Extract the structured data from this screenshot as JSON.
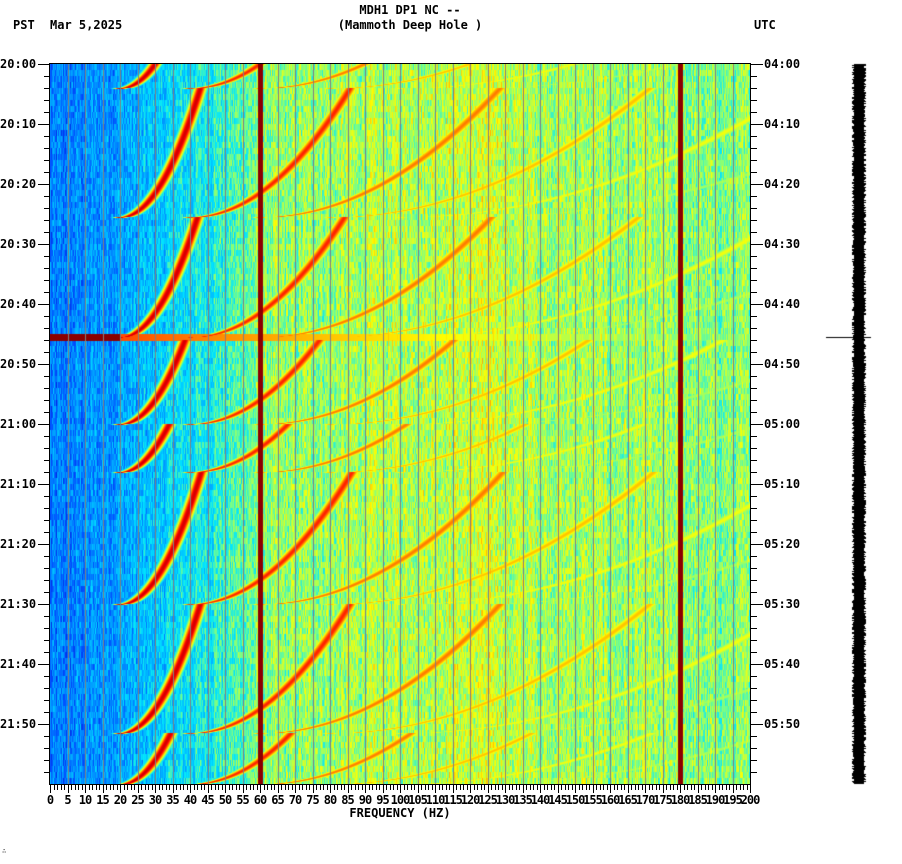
{
  "header": {
    "station_line": "MDH1 DP1 NC --",
    "site_line": "(Mammoth Deep Hole )",
    "left_timezone": "PST",
    "date": "Mar 5,2025",
    "right_timezone": "UTC"
  },
  "footer": {
    "corner_mark": "∴"
  },
  "colors": {
    "background": "#ffffff",
    "gridline": "#808080",
    "axis": "#000000",
    "trace": "#000000",
    "colormap": [
      "#0000c8",
      "#0050ff",
      "#00a0ff",
      "#00e6ff",
      "#80ff80",
      "#ffff00",
      "#ff9000",
      "#ff0000",
      "#8b0000"
    ]
  },
  "chart_data": {
    "type": "heatmap",
    "title": "MDH1 DP1 NC -- (Mammoth Deep Hole )",
    "xlabel": "FREQUENCY (HZ)",
    "ylabel_left": "PST",
    "ylabel_right": "UTC",
    "xlim": [
      0,
      200
    ],
    "x_tick_step": 5,
    "x_minor_tick_step": 1,
    "x_tick_labels": [
      "0",
      "5",
      "10",
      "15",
      "20",
      "25",
      "30",
      "35",
      "40",
      "45",
      "50",
      "55",
      "60",
      "65",
      "70",
      "75",
      "80",
      "85",
      "90",
      "95",
      "100",
      "105",
      "110",
      "115",
      "120",
      "125",
      "130",
      "135",
      "140",
      "145",
      "150",
      "155",
      "160",
      "165",
      "170",
      "175",
      "180",
      "185",
      "190",
      "195",
      "200"
    ],
    "y_range_minutes": 120,
    "y_minor_tick_minutes": 2,
    "y_left_ticks": [
      {
        "minute": 0,
        "label": "20:00"
      },
      {
        "minute": 10,
        "label": "20:10"
      },
      {
        "minute": 20,
        "label": "20:20"
      },
      {
        "minute": 30,
        "label": "20:30"
      },
      {
        "minute": 40,
        "label": "20:40"
      },
      {
        "minute": 50,
        "label": "20:50"
      },
      {
        "minute": 60,
        "label": "21:00"
      },
      {
        "minute": 70,
        "label": "21:10"
      },
      {
        "minute": 80,
        "label": "21:20"
      },
      {
        "minute": 90,
        "label": "21:30"
      },
      {
        "minute": 100,
        "label": "21:40"
      },
      {
        "minute": 110,
        "label": "21:50"
      }
    ],
    "y_right_ticks": [
      {
        "minute": 0,
        "label": "04:00"
      },
      {
        "minute": 10,
        "label": "04:10"
      },
      {
        "minute": 20,
        "label": "04:20"
      },
      {
        "minute": 30,
        "label": "04:30"
      },
      {
        "minute": 40,
        "label": "04:40"
      },
      {
        "minute": 50,
        "label": "04:50"
      },
      {
        "minute": 60,
        "label": "05:00"
      },
      {
        "minute": 70,
        "label": "05:10"
      },
      {
        "minute": 80,
        "label": "05:20"
      },
      {
        "minute": 90,
        "label": "05:30"
      },
      {
        "minute": 100,
        "label": "05:40"
      },
      {
        "minute": 110,
        "label": "05:50"
      }
    ],
    "persistent_lines_hz": [
      60,
      180
    ],
    "broadband_event_minute": 45.5,
    "sweep_events": [
      {
        "start_minute": 0,
        "end_minute": 4
      },
      {
        "start_minute": 4,
        "end_minute": 25.5
      },
      {
        "start_minute": 25.5,
        "end_minute": 45.5
      },
      {
        "start_minute": 46,
        "end_minute": 60
      },
      {
        "start_minute": 60,
        "end_minute": 68
      },
      {
        "start_minute": 68,
        "end_minute": 90
      },
      {
        "start_minute": 90,
        "end_minute": 111.5
      },
      {
        "start_minute": 111.5,
        "end_minute": 120
      }
    ],
    "sweep_harmonic_start_hz": [
      20,
      40,
      60,
      80,
      100,
      120
    ],
    "description": "Spectrogram: low-frequency (0-25 Hz) blue background, rising harmonic sweeps (dark red arcs) repeating every ~20 minutes, strong lines at 60 Hz and 180 Hz, broadband event at ~20:45 PST"
  },
  "seismogram": {
    "marker_minute": 45.5
  }
}
